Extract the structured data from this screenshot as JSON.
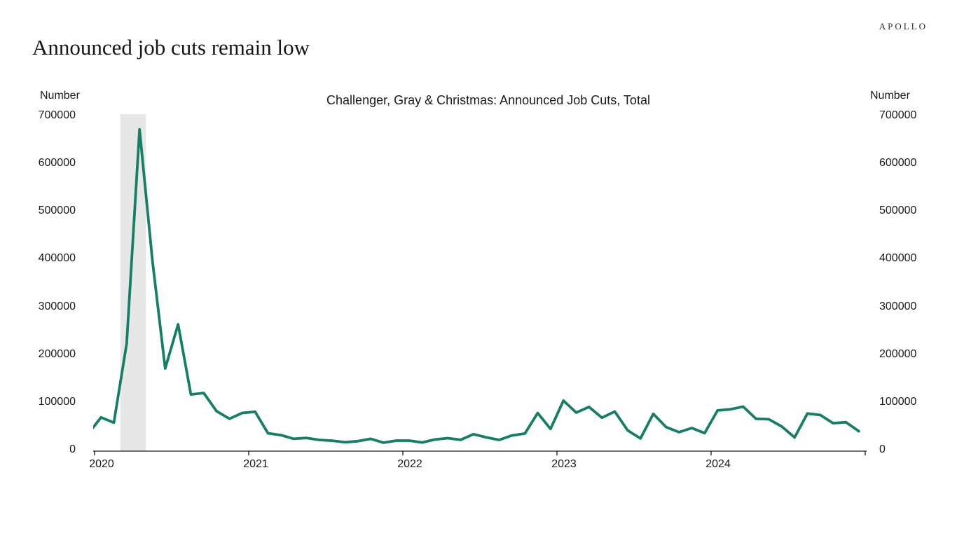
{
  "header": {
    "logo": "APOLLO",
    "title": "Announced job cuts remain low"
  },
  "chart_data": {
    "type": "line",
    "title": "Challenger, Gray & Christmas: Announced Job Cuts, Total",
    "ylabel_left": "Number",
    "ylabel_right": "Number",
    "ylim": [
      0,
      700000
    ],
    "y_ticks": [
      0,
      100000,
      200000,
      300000,
      400000,
      500000,
      600000,
      700000
    ],
    "x_tick_labels": [
      "2020",
      "2021",
      "2022",
      "2023",
      "2024"
    ],
    "grid": false,
    "legend_position": "none",
    "recession_band": {
      "from": "2020-03",
      "to": "2020-05",
      "color": "#e7e7e7"
    },
    "x": [
      "2019-12",
      "2020-01",
      "2020-02",
      "2020-03",
      "2020-04",
      "2020-05",
      "2020-06",
      "2020-07",
      "2020-08",
      "2020-09",
      "2020-10",
      "2020-11",
      "2020-12",
      "2021-01",
      "2021-02",
      "2021-03",
      "2021-04",
      "2021-05",
      "2021-06",
      "2021-07",
      "2021-08",
      "2021-09",
      "2021-10",
      "2021-11",
      "2021-12",
      "2022-01",
      "2022-02",
      "2022-03",
      "2022-04",
      "2022-05",
      "2022-06",
      "2022-07",
      "2022-08",
      "2022-09",
      "2022-10",
      "2022-11",
      "2022-12",
      "2023-01",
      "2023-02",
      "2023-03",
      "2023-04",
      "2023-05",
      "2023-06",
      "2023-07",
      "2023-08",
      "2023-09",
      "2023-10",
      "2023-11",
      "2023-12",
      "2024-01",
      "2024-02",
      "2024-03",
      "2024-04",
      "2024-05",
      "2024-06",
      "2024-07",
      "2024-08",
      "2024-09",
      "2024-10",
      "2024-11",
      "2024-12"
    ],
    "series": [
      {
        "name": "Challenger, Gray & Christmas: Announced Job Cuts, Total",
        "color": "#157f66",
        "values": [
          32843,
          67735,
          56660,
          222288,
          671129,
          397016,
          170219,
          262649,
          115762,
          118804,
          80666,
          64797,
          77030,
          79552,
          34531,
          30603,
          22913,
          24586,
          20476,
          18942,
          15723,
          17895,
          22822,
          14875,
          19052,
          19064,
          15245,
          21387,
          24286,
          20712,
          32517,
          25810,
          20485,
          29989,
          33843,
          76835,
          43651,
          102943,
          77770,
          89703,
          66995,
          80089,
          40709,
          23697,
          75151,
          47457,
          36836,
          45510,
          34817,
          82307,
          84638,
          90309,
          64789,
          63816,
          48786,
          25885,
          75891,
          72821,
          55597,
          57727,
          38792
        ]
      }
    ]
  }
}
